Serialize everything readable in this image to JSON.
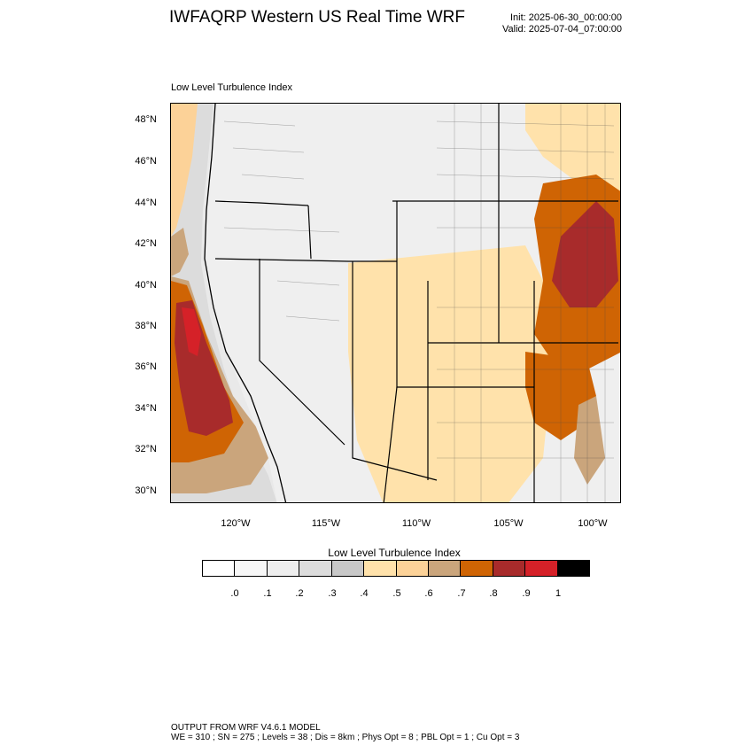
{
  "header": {
    "title": "IWFAQRP Western US Real Time WRF",
    "init": "Init: 2025-06-30_00:00:00",
    "valid": "Valid: 2025-07-04_07:00:00"
  },
  "map": {
    "subtitle": "Low Level Turbulence Index",
    "lat_labels": [
      "48°N",
      "46°N",
      "44°N",
      "42°N",
      "40°N",
      "38°N",
      "36°N",
      "34°N",
      "32°N",
      "30°N"
    ],
    "lon_labels": [
      "120°W",
      "115°W",
      "110°W",
      "105°W",
      "100°W"
    ]
  },
  "colorbar": {
    "title": "Low Level Turbulence Index",
    "labels": [
      ".0",
      ".1",
      ".2",
      ".3",
      ".4",
      ".5",
      ".6",
      ".7",
      ".8",
      ".9",
      "1"
    ],
    "colors": [
      "#ffffff",
      "#f7f7f7",
      "#eeeeee",
      "#dcdcdc",
      "#c8c8c8",
      "#ffe2ab",
      "#fcd298",
      "#caa57c",
      "#cf6404",
      "#a82b2b",
      "#d52128",
      "#000000"
    ]
  },
  "footer": {
    "line1": "OUTPUT FROM WRF V4.6.1 MODEL",
    "line2": "WE = 310 ; SN = 275 ; Levels = 38 ; Dis = 8km ; Phys Opt = 8 ; PBL Opt = 1 ; Cu Opt = 3"
  }
}
